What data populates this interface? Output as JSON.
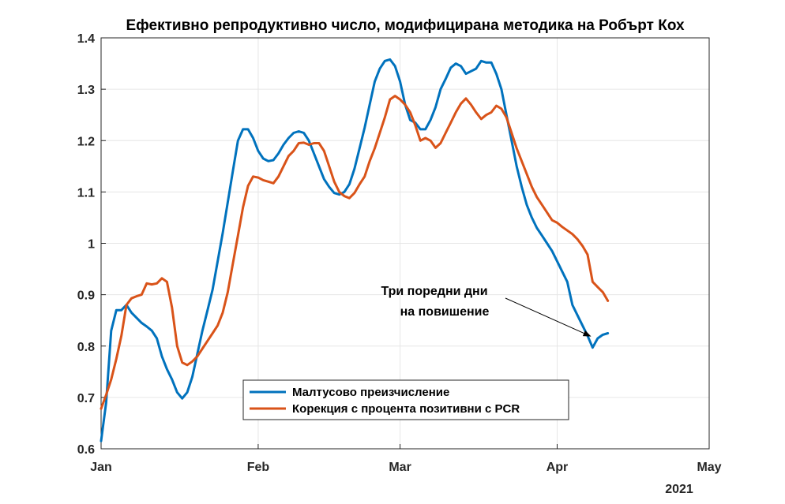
{
  "chart_data": {
    "type": "line",
    "title": "Ефективно репродуктивно число, модифицирана методика на Робърт Кох",
    "xlabel": "",
    "ylabel": "",
    "year_label": "2021",
    "x_ticks": [
      "Jan",
      "Feb",
      "Mar",
      "Apr",
      "May"
    ],
    "x_tick_days": [
      0,
      31,
      59,
      90,
      120
    ],
    "xlim_days": [
      0,
      120
    ],
    "ylim": [
      0.6,
      1.4
    ],
    "y_ticks": [
      0.6,
      0.7,
      0.8,
      0.9,
      1,
      1.1,
      1.2,
      1.3,
      1.4
    ],
    "y_tick_labels": [
      "0.6",
      "0.7",
      "0.8",
      "0.9",
      "1",
      "1.1",
      "1.2",
      "1.3",
      "1.4"
    ],
    "grid": true,
    "legend_position": "bottom-center",
    "series": [
      {
        "name": "Малтусово преизчисление",
        "color": "#0072BD",
        "x": [
          0,
          1,
          2,
          3,
          4,
          5,
          6,
          7,
          8,
          9,
          10,
          11,
          12,
          13,
          14,
          15,
          16,
          17,
          18,
          19,
          20,
          21,
          22,
          23,
          24,
          25,
          26,
          27,
          28,
          29,
          30,
          31,
          32,
          33,
          34,
          35,
          36,
          37,
          38,
          39,
          40,
          41,
          42,
          43,
          44,
          45,
          46,
          47,
          48,
          49,
          50,
          51,
          52,
          53,
          54,
          55,
          56,
          57,
          58,
          59,
          60,
          61,
          62,
          63,
          64,
          65,
          66,
          67,
          68,
          69,
          70,
          71,
          72,
          73,
          74,
          75,
          76,
          77,
          78,
          79,
          80,
          81,
          82,
          83,
          84,
          85,
          86,
          87,
          88,
          89,
          90,
          91,
          92,
          93,
          94,
          95,
          96,
          97,
          98,
          99,
          100
        ],
        "values": [
          0.615,
          0.69,
          0.83,
          0.87,
          0.87,
          0.88,
          0.865,
          0.855,
          0.845,
          0.838,
          0.83,
          0.815,
          0.78,
          0.755,
          0.735,
          0.71,
          0.698,
          0.71,
          0.74,
          0.785,
          0.83,
          0.87,
          0.91,
          0.965,
          1.02,
          1.08,
          1.14,
          1.2,
          1.222,
          1.222,
          1.205,
          1.18,
          1.165,
          1.16,
          1.162,
          1.175,
          1.192,
          1.205,
          1.215,
          1.218,
          1.215,
          1.2,
          1.175,
          1.15,
          1.125,
          1.11,
          1.098,
          1.095,
          1.1,
          1.115,
          1.145,
          1.185,
          1.225,
          1.27,
          1.315,
          1.34,
          1.355,
          1.358,
          1.345,
          1.315,
          1.27,
          1.24,
          1.235,
          1.222,
          1.222,
          1.24,
          1.265,
          1.3,
          1.32,
          1.342,
          1.35,
          1.345,
          1.33,
          1.335,
          1.34,
          1.355,
          1.352,
          1.352,
          1.33,
          1.3,
          1.25,
          1.2,
          1.15,
          1.11,
          1.075,
          1.05,
          1.03,
          1.015,
          1.0,
          0.985,
          0.965,
          0.945,
          0.925,
          0.88,
          0.86,
          0.84,
          0.82,
          0.797,
          0.815,
          0.822,
          0.825
        ]
      },
      {
        "name": "Корекция с процента позитивни с PCR",
        "color": "#D95319",
        "x": [
          0,
          1,
          2,
          3,
          4,
          5,
          6,
          7,
          8,
          9,
          10,
          11,
          12,
          13,
          14,
          15,
          16,
          17,
          18,
          19,
          20,
          21,
          22,
          23,
          24,
          25,
          26,
          27,
          28,
          29,
          30,
          31,
          32,
          33,
          34,
          35,
          36,
          37,
          38,
          39,
          40,
          41,
          42,
          43,
          44,
          45,
          46,
          47,
          48,
          49,
          50,
          51,
          52,
          53,
          54,
          55,
          56,
          57,
          58,
          59,
          60,
          61,
          62,
          63,
          64,
          65,
          66,
          67,
          68,
          69,
          70,
          71,
          72,
          73,
          74,
          75,
          76,
          77,
          78,
          79,
          80,
          81,
          82,
          83,
          84,
          85,
          86,
          87,
          88,
          89,
          90,
          91,
          92,
          93,
          94,
          95,
          96,
          97,
          98,
          99,
          100
        ],
        "values": [
          0.678,
          0.705,
          0.735,
          0.775,
          0.82,
          0.88,
          0.893,
          0.897,
          0.9,
          0.922,
          0.92,
          0.922,
          0.932,
          0.925,
          0.875,
          0.8,
          0.768,
          0.763,
          0.77,
          0.78,
          0.795,
          0.81,
          0.825,
          0.84,
          0.865,
          0.905,
          0.96,
          1.015,
          1.07,
          1.112,
          1.13,
          1.128,
          1.123,
          1.12,
          1.117,
          1.13,
          1.15,
          1.17,
          1.18,
          1.195,
          1.196,
          1.192,
          1.195,
          1.195,
          1.18,
          1.15,
          1.12,
          1.1,
          1.092,
          1.088,
          1.098,
          1.115,
          1.13,
          1.16,
          1.185,
          1.215,
          1.245,
          1.28,
          1.287,
          1.28,
          1.27,
          1.255,
          1.23,
          1.2,
          1.205,
          1.2,
          1.186,
          1.195,
          1.215,
          1.235,
          1.255,
          1.272,
          1.282,
          1.27,
          1.255,
          1.242,
          1.25,
          1.255,
          1.268,
          1.262,
          1.245,
          1.215,
          1.185,
          1.16,
          1.135,
          1.11,
          1.09,
          1.075,
          1.06,
          1.045,
          1.04,
          1.032,
          1.025,
          1.018,
          1.008,
          0.995,
          0.978,
          0.925,
          0.915,
          0.905,
          0.888
        ]
      }
    ],
    "annotations": [
      {
        "lines": [
          "Три поредни дни",
          "на повишение"
        ],
        "arrow_from": [
          82,
          0.9
        ],
        "arrow_to": [
          97.5,
          0.807
        ]
      }
    ]
  }
}
